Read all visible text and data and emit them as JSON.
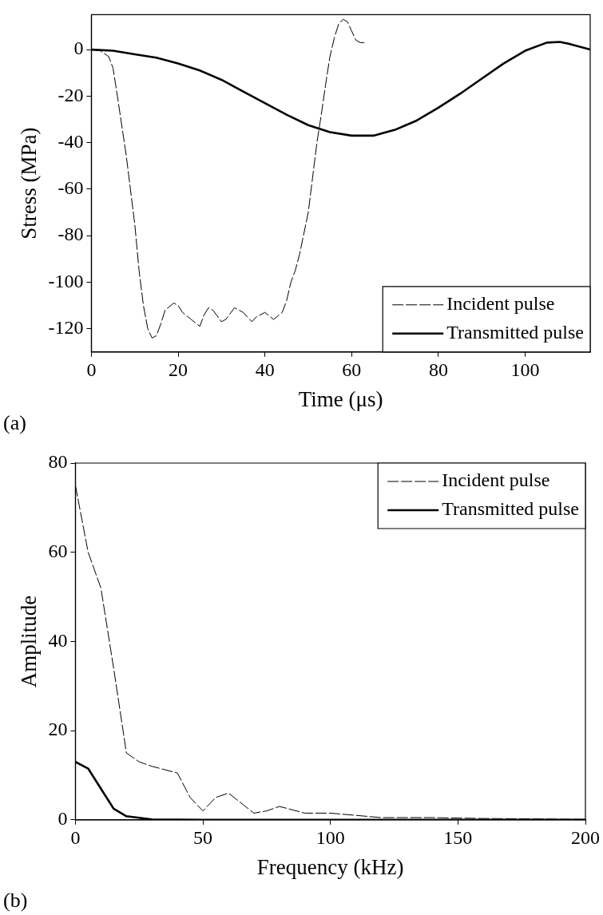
{
  "chart_data": [
    {
      "type": "line",
      "xlabel": "Time (μs)",
      "ylabel": "Stress (MPa)",
      "xlim": [
        0,
        115
      ],
      "ylim": [
        -130,
        15
      ],
      "xticks": [
        0,
        20,
        40,
        60,
        80,
        100
      ],
      "yticks": [
        -120,
        -100,
        -80,
        -60,
        -40,
        -20,
        0
      ],
      "legend": "bottom right",
      "grid": false,
      "marker": "none",
      "annotations": [
        "(a)"
      ],
      "series": [
        {
          "name": "Incident pulse",
          "color": "#000000",
          "line_style": "dashed",
          "x": [
            0,
            2,
            4,
            5,
            6,
            8,
            10,
            11,
            12,
            13,
            14,
            15,
            16,
            17,
            19,
            20,
            21,
            23,
            25,
            26,
            27,
            28,
            30,
            31,
            33,
            35,
            37,
            38,
            40,
            42,
            44,
            45,
            46,
            47,
            48,
            50,
            51,
            52,
            53,
            54,
            55,
            56,
            57,
            58,
            59,
            60,
            61,
            62,
            63
          ],
          "values": [
            0,
            -0.5,
            -3,
            -8,
            -20,
            -45,
            -75,
            -95,
            -110,
            -120,
            -124,
            -123,
            -118,
            -112,
            -109,
            -110,
            -113,
            -116,
            -119,
            -114,
            -111,
            -112,
            -117,
            -116,
            -111,
            -113,
            -117,
            -115,
            -113,
            -116,
            -113,
            -108,
            -100,
            -95,
            -88,
            -70,
            -55,
            -40,
            -28,
            -15,
            -3,
            5,
            11,
            13,
            12,
            8,
            4,
            3,
            3
          ]
        },
        {
          "name": "Transmitted pulse",
          "color": "#000000",
          "line_style": "solid",
          "x": [
            0,
            5,
            10,
            15,
            20,
            25,
            30,
            35,
            40,
            45,
            50,
            55,
            60,
            65,
            70,
            75,
            80,
            85,
            90,
            95,
            100,
            105,
            108,
            110,
            115
          ],
          "values": [
            0,
            -0.5,
            -2,
            -3.5,
            -6,
            -9,
            -13,
            -18,
            -23,
            -28,
            -32.5,
            -35.5,
            -37,
            -37,
            -34.5,
            -30.5,
            -25,
            -19,
            -12.5,
            -6,
            -0.5,
            3,
            3.3,
            2.5,
            0
          ]
        }
      ]
    },
    {
      "type": "line",
      "xlabel": "Frequency (kHz)",
      "ylabel": "Amplitude",
      "xlim": [
        0,
        200
      ],
      "ylim": [
        0,
        80
      ],
      "xticks": [
        0,
        50,
        100,
        150,
        200
      ],
      "yticks": [
        0,
        20,
        40,
        60,
        80
      ],
      "legend": "top right",
      "grid": false,
      "marker": "none",
      "annotations": [
        "(b)"
      ],
      "series": [
        {
          "name": "Incident pulse",
          "color": "#000000",
          "line_style": "dashed",
          "x": [
            0,
            5,
            10,
            15,
            20,
            25,
            30,
            40,
            45,
            50,
            55,
            60,
            70,
            75,
            80,
            90,
            100,
            110,
            120,
            140,
            160,
            180,
            200
          ],
          "values": [
            75,
            60,
            52,
            34,
            15,
            13,
            12,
            10.5,
            5,
            2,
            5,
            6,
            1.5,
            2,
            3,
            1.5,
            1.5,
            1,
            0.5,
            0.5,
            0.3,
            0.2,
            0.1
          ]
        },
        {
          "name": "Transmitted pulse",
          "color": "#000000",
          "line_style": "solid",
          "x": [
            0,
            5,
            10,
            15,
            20,
            30,
            50,
            200
          ],
          "values": [
            13,
            11.5,
            7,
            2.5,
            0.8,
            0.1,
            0,
            0
          ]
        }
      ]
    }
  ]
}
